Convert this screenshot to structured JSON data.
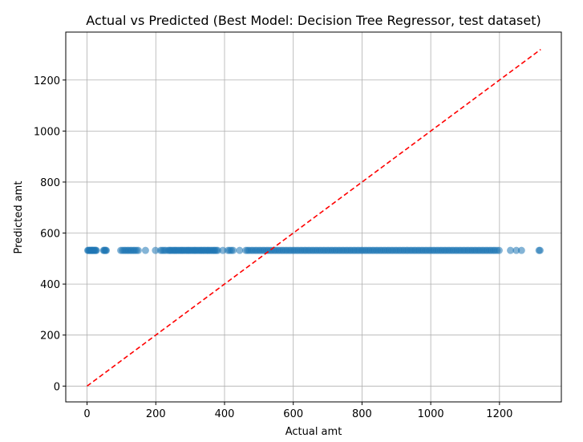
{
  "chart_data": {
    "type": "scatter",
    "title": "Actual vs Predicted (Best Model: Decision Tree Regressor, test dataset)",
    "xlabel": "Actual amt",
    "ylabel": "Predicted amt",
    "xlim": [
      -62,
      1380
    ],
    "ylim": [
      -62,
      1388
    ],
    "xticks": [
      0,
      200,
      400,
      600,
      800,
      1000,
      1200
    ],
    "yticks": [
      0,
      200,
      400,
      600,
      800,
      1000,
      1200
    ],
    "grid": true,
    "point_color": "#1f77b4",
    "point_alpha": 0.55,
    "reference_line": {
      "style": "dashed",
      "color": "#ff0000",
      "from": [
        0,
        0
      ],
      "to": [
        1320,
        1320
      ]
    },
    "predicted_constant": 532,
    "x": [
      2,
      4,
      6,
      8,
      10,
      12,
      14,
      15,
      17,
      19,
      21,
      23,
      25,
      27,
      48,
      50,
      52,
      54,
      56,
      98,
      103,
      108,
      112,
      117,
      121,
      126,
      130,
      135,
      139,
      144,
      149,
      170,
      199,
      214,
      219,
      224,
      229,
      236,
      240,
      243,
      247,
      251,
      255,
      258,
      262,
      266,
      270,
      274,
      277,
      281,
      285,
      289,
      293,
      296,
      300,
      304,
      308,
      312,
      315,
      319,
      323,
      327,
      331,
      334,
      338,
      342,
      346,
      350,
      353,
      357,
      361,
      365,
      369,
      372,
      376,
      380,
      395,
      410,
      415,
      420,
      425,
      444,
      462,
      467,
      472,
      478,
      483,
      489,
      494,
      500,
      505,
      511,
      516,
      522,
      527,
      533,
      538,
      544,
      549,
      555,
      560,
      566,
      571,
      577,
      582,
      588,
      593,
      599,
      604,
      610,
      615,
      621,
      626,
      632,
      637,
      643,
      648,
      654,
      659,
      665,
      670,
      676,
      681,
      687,
      692,
      698,
      703,
      709,
      714,
      720,
      725,
      731,
      736,
      742,
      747,
      753,
      758,
      764,
      769,
      775,
      780,
      786,
      791,
      797,
      802,
      808,
      813,
      819,
      824,
      830,
      835,
      841,
      846,
      852,
      857,
      863,
      868,
      874,
      879,
      885,
      890,
      896,
      901,
      907,
      912,
      918,
      923,
      929,
      934,
      940,
      945,
      951,
      956,
      962,
      967,
      973,
      978,
      984,
      989,
      995,
      1000,
      1006,
      1011,
      1017,
      1022,
      1028,
      1033,
      1039,
      1044,
      1050,
      1055,
      1061,
      1066,
      1072,
      1077,
      1083,
      1088,
      1094,
      1099,
      1105,
      1110,
      1116,
      1121,
      1127,
      1132,
      1138,
      1143,
      1149,
      1154,
      1160,
      1165,
      1171,
      1176,
      1182,
      1187,
      1193,
      1199,
      1232,
      1249,
      1264,
      1315,
      1318
    ]
  }
}
